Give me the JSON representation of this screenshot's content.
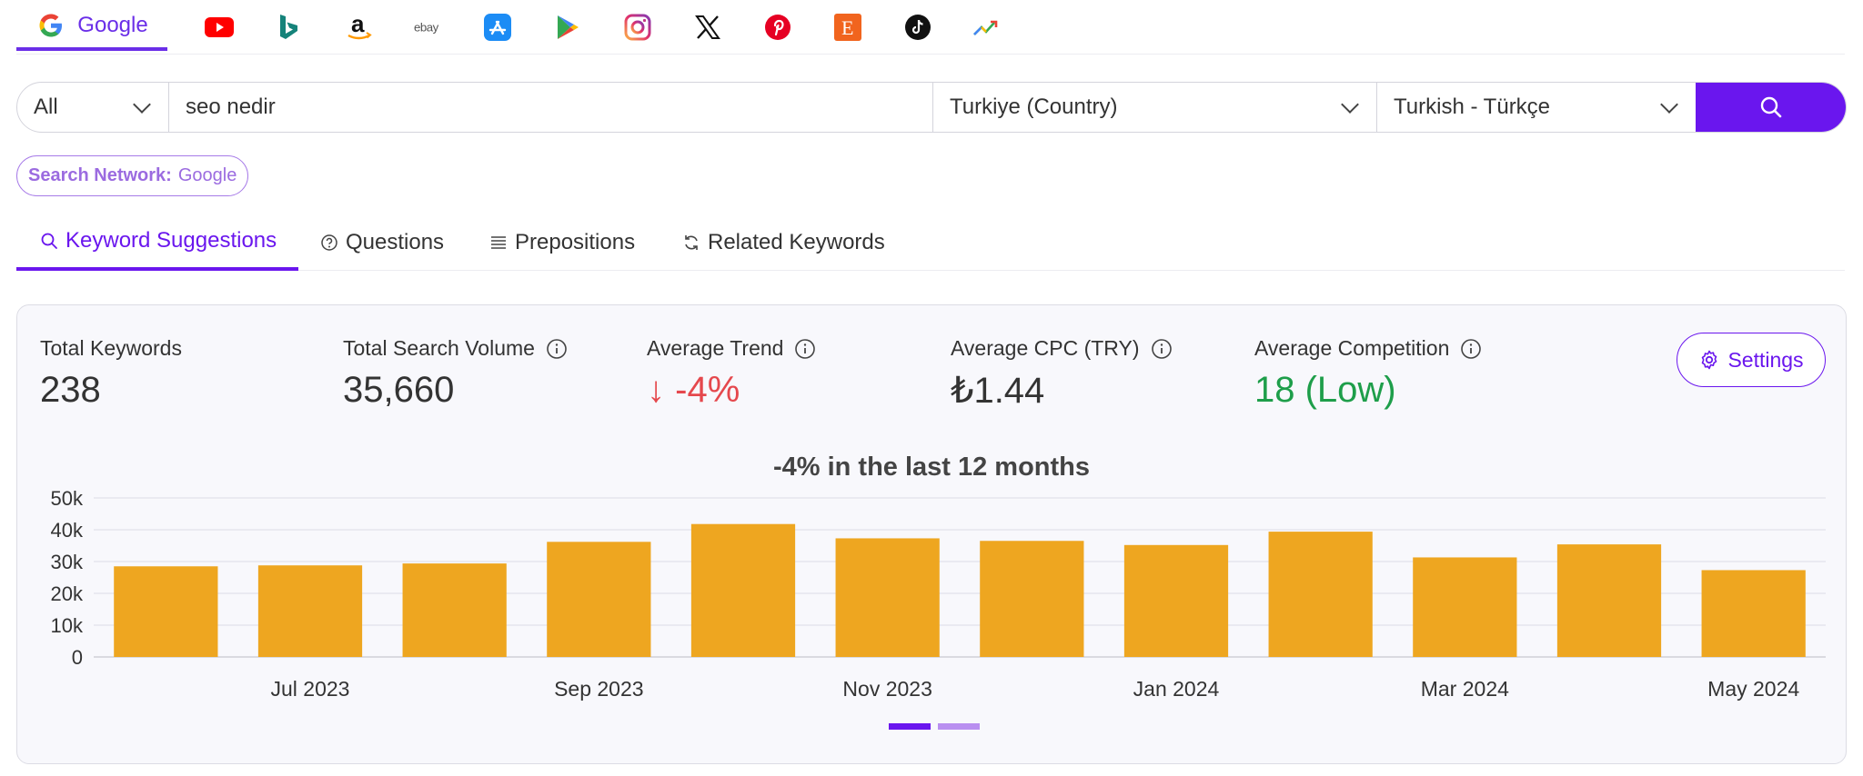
{
  "platforms": {
    "google_label": "Google",
    "items": [
      "youtube-icon",
      "bing-icon",
      "amazon-icon",
      "ebay-icon",
      "app-store-icon",
      "google-play-icon",
      "instagram-icon",
      "x-icon",
      "pinterest-icon",
      "etsy-icon",
      "tiktok-icon",
      "trends-icon"
    ],
    "ebay_text": "ebay",
    "amazon_text": "a",
    "etsy_text": "E"
  },
  "search": {
    "type": "All",
    "query": "seo nedir",
    "country": "Turkiye (Country)",
    "language": "Turkish - Türkçe"
  },
  "network": {
    "label": "Search Network:",
    "value": "Google"
  },
  "tabs": [
    {
      "label": "Keyword Suggestions",
      "icon": "search-icon"
    },
    {
      "label": "Questions",
      "icon": "question-circle-icon"
    },
    {
      "label": "Prepositions",
      "icon": "list-icon"
    },
    {
      "label": "Related Keywords",
      "icon": "refresh-icon"
    }
  ],
  "stats": {
    "total_keywords": {
      "label": "Total Keywords",
      "value": "238"
    },
    "total_volume": {
      "label": "Total Search Volume",
      "value": "35,660"
    },
    "avg_trend": {
      "label": "Average Trend",
      "value": "-4%",
      "arrow": "↓"
    },
    "avg_cpc": {
      "label": "Average CPC (TRY)",
      "value": "₺1.44"
    },
    "avg_competition": {
      "label": "Average Competition",
      "value": "18 (Low)"
    }
  },
  "settings_label": "Settings",
  "colors": {
    "accent": "#6a16ee",
    "bar": "#eea620",
    "red": "#e5484d",
    "green": "#1e9e4a"
  },
  "chart_data": {
    "type": "bar",
    "title": "-4% in the last 12 months",
    "categories": [
      "Jun 2023",
      "Jul 2023",
      "Aug 2023",
      "Sep 2023",
      "Oct 2023",
      "Nov 2023",
      "Dec 2023",
      "Jan 2024",
      "Feb 2024",
      "Mar 2024",
      "Apr 2024",
      "May 2024"
    ],
    "tick_labels": [
      "Jul 2023",
      "Sep 2023",
      "Nov 2023",
      "Jan 2024",
      "Mar 2024",
      "May 2024"
    ],
    "values": [
      28500,
      28800,
      29400,
      36200,
      41800,
      37300,
      36500,
      35200,
      39400,
      31300,
      35400,
      27300
    ],
    "y_ticks": [
      "0",
      "10k",
      "20k",
      "30k",
      "40k",
      "50k"
    ],
    "ylim": [
      0,
      50000
    ],
    "grid": true,
    "xlabel": "",
    "ylabel": ""
  },
  "pager": {
    "pages": 2,
    "active": 0
  }
}
